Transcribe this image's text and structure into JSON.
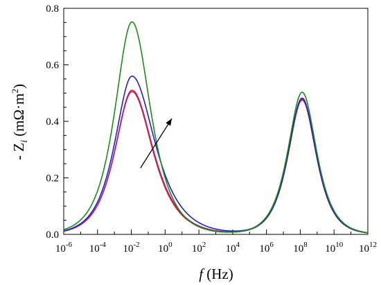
{
  "chart_data": {
    "type": "line",
    "xscale": "log10",
    "xlim": [
      1e-06,
      1000000000000.0
    ],
    "ylim": [
      0.0,
      0.8
    ],
    "xlabel": {
      "var": "f",
      "unit": "(Hz)"
    },
    "ylabel": {
      "prefix": "- Z",
      "sub": "i",
      "unit": " (mΩ·m",
      "sup": "2",
      "close": ")"
    },
    "yticks": [
      "0.0",
      "0.2",
      "0.4",
      "0.6",
      "0.8"
    ],
    "xticks": [
      {
        "base": "10",
        "exp": "-6"
      },
      {
        "base": "10",
        "exp": "-4"
      },
      {
        "base": "10",
        "exp": "-2"
      },
      {
        "base": "10",
        "exp": "0"
      },
      {
        "base": "10",
        "exp": "2"
      },
      {
        "base": "10",
        "exp": "4"
      },
      {
        "base": "10",
        "exp": "6"
      },
      {
        "base": "10",
        "exp": "8"
      },
      {
        "base": "10",
        "exp": "10"
      },
      {
        "base": "10",
        "exp": "12"
      }
    ],
    "grid": false,
    "legend": "none",
    "series": [
      {
        "color": "#e0202a",
        "peaks": [
          {
            "freq": 0.011,
            "height": 0.505,
            "wl": 0.9,
            "wr": 1.1
          },
          {
            "freq": 130000000.0,
            "height": 0.475,
            "wl": 0.75,
            "wr": 0.75
          }
        ]
      },
      {
        "color": "#b0207a",
        "peaks": [
          {
            "freq": 0.011,
            "height": 0.51,
            "wl": 0.9,
            "wr": 1.12
          },
          {
            "freq": 130000000.0,
            "height": 0.478,
            "wl": 0.75,
            "wr": 0.75
          }
        ]
      },
      {
        "color": "#2020c0",
        "peaks": [
          {
            "freq": 0.011,
            "height": 0.56,
            "wl": 0.9,
            "wr": 1.2
          },
          {
            "freq": 130000000.0,
            "height": 0.482,
            "wl": 0.75,
            "wr": 0.75
          }
        ]
      },
      {
        "color": "#1a8a1a",
        "peaks": [
          {
            "freq": 0.011,
            "height": 0.752,
            "wl": 0.9,
            "wr": 0.98
          },
          {
            "freq": 130000000.0,
            "height": 0.503,
            "wl": 0.76,
            "wr": 0.76
          }
        ]
      }
    ],
    "annotation": {
      "type": "arrow",
      "from": [
        0.035,
        0.235
      ],
      "to": [
        2.5,
        0.41
      ],
      "meaning": "direction of increase"
    }
  }
}
